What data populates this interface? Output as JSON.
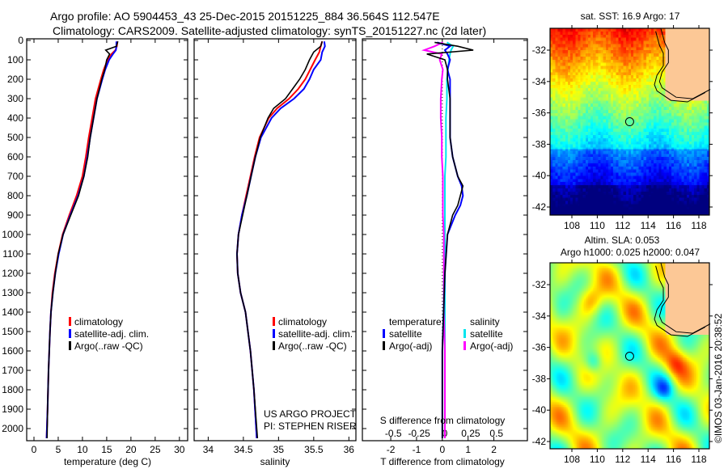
{
  "title": {
    "line1": "Argo profile: AO 5904453_43 25-Dec-2015 20151225_884 36.564S 112.547E",
    "line2": "Climatology: CARS2009. Satellite-adjusted climatology: synTS_20151227.nc (2d later)"
  },
  "colors": {
    "climatology": "#ff0000",
    "satellite": "#0000ff",
    "argo": "#000000",
    "sal_satellite": "#00e5ee",
    "sal_argo": "#ff00ff",
    "land": "#fcc896"
  },
  "credits": {
    "line1": "US ARGO PROJECT",
    "line2": "PI: STEPHEN RISER"
  },
  "copyright": "©IMOS 03-Jan-2016 20:38:52",
  "legend_profiles": [
    "climatology",
    "satellite-adj. clim.",
    "Argo(..raw -QC)"
  ],
  "legend_diff": {
    "temp_header": "temperature",
    "sal_header": "salinity",
    "temp_items": [
      "satellite",
      "Argo(-adj)"
    ],
    "sal_items": [
      "satellite",
      "Argo(-adj)"
    ]
  },
  "chart_data": [
    {
      "type": "line",
      "title": "",
      "xlabel": "temperature (deg C)",
      "ylabel": "",
      "xlim": [
        -1.5,
        31.7
      ],
      "ylim": [
        2060,
        0
      ],
      "xticks": [
        "0",
        "5",
        "10",
        "15",
        "20",
        "25",
        "30"
      ],
      "yticks": [
        "0",
        "100",
        "200",
        "300",
        "400",
        "500",
        "600",
        "700",
        "800",
        "900",
        "1000",
        "1100",
        "1200",
        "1300",
        "1400",
        "1500",
        "1600",
        "1700",
        "1800",
        "1900",
        "2000"
      ],
      "depth": [
        5,
        30,
        50,
        70,
        100,
        150,
        200,
        300,
        400,
        500,
        600,
        700,
        800,
        900,
        1000,
        1100,
        1200,
        1300,
        1400,
        1500,
        1700,
        1900,
        2050
      ],
      "series": [
        {
          "name": "climatology",
          "values": [
            17.2,
            17.1,
            16.8,
            16.0,
            15.2,
            14.4,
            13.8,
            12.7,
            12.0,
            11.3,
            10.7,
            10.0,
            8.8,
            7.3,
            5.9,
            5.0,
            4.3,
            3.8,
            3.5,
            3.3,
            3.0,
            2.8,
            2.6
          ]
        },
        {
          "name": "satellite-adj. clim.",
          "values": [
            17.0,
            17.0,
            16.9,
            16.3,
            15.5,
            14.7,
            14.1,
            13.0,
            12.3,
            11.6,
            11.0,
            10.3,
            9.1,
            7.5,
            6.0,
            5.1,
            4.4,
            3.9,
            3.5,
            3.3,
            3.0,
            2.8,
            2.6
          ]
        },
        {
          "name": "Argo(..raw -QC)",
          "values": [
            17.3,
            17.0,
            14.8,
            15.6,
            15.0,
            14.6,
            14.0,
            13.0,
            12.3,
            11.6,
            11.1,
            10.3,
            9.2,
            7.6,
            6.0,
            5.0,
            4.4,
            3.9,
            3.5,
            3.3,
            3.0,
            2.8,
            2.7
          ]
        }
      ]
    },
    {
      "type": "line",
      "xlabel": "salinity",
      "xlim": [
        33.8,
        36.1
      ],
      "ylim": [
        2060,
        0
      ],
      "xticks": [
        "34",
        "34.5",
        "35",
        "35.5",
        "36"
      ],
      "depth": [
        5,
        30,
        60,
        100,
        150,
        200,
        250,
        300,
        350,
        400,
        500,
        600,
        700,
        800,
        900,
        1000,
        1100,
        1200,
        1300,
        1400,
        1600,
        1800,
        2050
      ],
      "series": [
        {
          "name": "climatology",
          "values": [
            35.62,
            35.6,
            35.58,
            35.52,
            35.45,
            35.38,
            35.28,
            35.15,
            34.98,
            34.86,
            34.73,
            34.66,
            34.6,
            34.54,
            34.48,
            34.43,
            34.41,
            34.42,
            34.46,
            34.53,
            34.6,
            34.65,
            34.69
          ]
        },
        {
          "name": "satellite-adj. clim.",
          "values": [
            35.65,
            35.66,
            35.62,
            35.6,
            35.5,
            35.44,
            35.36,
            35.22,
            35.03,
            34.9,
            34.75,
            34.67,
            34.61,
            34.55,
            34.48,
            34.43,
            34.41,
            34.42,
            34.46,
            34.53,
            34.6,
            34.65,
            34.69
          ]
        },
        {
          "name": "Argo(..raw -QC)",
          "values": [
            35.62,
            35.6,
            35.5,
            35.44,
            35.38,
            35.3,
            35.2,
            35.1,
            34.93,
            34.85,
            34.74,
            34.67,
            34.61,
            34.55,
            34.49,
            34.43,
            34.41,
            34.42,
            34.46,
            34.53,
            34.6,
            34.65,
            34.7
          ]
        }
      ]
    },
    {
      "type": "line",
      "xlabel": "T difference from climatology",
      "x2label": "S difference from climatology",
      "xlim": [
        -3.1,
        3.3
      ],
      "x2lim": [
        -0.8,
        0.8
      ],
      "xticks": [
        "-2",
        "-1",
        "0",
        "1",
        "2"
      ],
      "x2ticks": [
        "-0.5",
        "-0.25",
        "0",
        "0.25",
        "0.5"
      ],
      "depth": [
        10,
        30,
        50,
        70,
        100,
        150,
        200,
        300,
        400,
        500,
        600,
        700,
        750,
        800,
        850,
        900,
        1000,
        1200,
        1400,
        1600,
        1800,
        2050
      ],
      "series": [
        {
          "name": "temperature satellite",
          "values": [
            -0.2,
            0.3,
            0.1,
            0.2,
            0.3,
            0.2,
            0.3,
            0.3,
            0.3,
            0.3,
            0.4,
            0.6,
            0.75,
            0.8,
            0.7,
            0.5,
            0.2,
            0.1,
            0.05,
            0.0,
            0.0,
            0.0
          ]
        },
        {
          "name": "temperature Argo(-adj)",
          "values": [
            -0.3,
            0.6,
            1.2,
            -0.6,
            0.1,
            0.2,
            0.2,
            0.3,
            0.3,
            0.3,
            0.4,
            0.6,
            0.8,
            0.7,
            0.6,
            0.4,
            0.2,
            0.1,
            0.05,
            0.0,
            0.0,
            0.0
          ]
        },
        {
          "name": "salinity satellite",
          "values": [
            0.02,
            0.08,
            0.06,
            0.05,
            0.04,
            0.03,
            0.02,
            0.02,
            0.01,
            0.01,
            0.01,
            0.0,
            0.0,
            0.0,
            0.0,
            0.0,
            0.0,
            0.0,
            0.0,
            0.0,
            0.0,
            0.0
          ]
        },
        {
          "name": "salinity Argo(-adj)",
          "values": [
            -0.02,
            -0.1,
            -0.2,
            -0.03,
            -0.05,
            -0.02,
            -0.03,
            -0.04,
            -0.04,
            -0.03,
            -0.03,
            -0.02,
            -0.02,
            -0.02,
            -0.02,
            -0.02,
            -0.01,
            -0.01,
            -0.01,
            0.0,
            0.0,
            0.0
          ]
        }
      ]
    },
    {
      "type": "heatmap",
      "title": "sat. SST: 16.9 Argo: 17",
      "xticks": [
        "108",
        "110",
        "112",
        "114",
        "116",
        "118"
      ],
      "yticks": [
        "-32",
        "-34",
        "-36",
        "-38",
        "-40",
        "-42"
      ],
      "xlim": [
        106.3,
        118.9
      ],
      "ylim": [
        -42.5,
        -30.6
      ],
      "marker": {
        "lon": 112.547,
        "lat": -36.564
      }
    },
    {
      "type": "heatmap",
      "title": "Altim. SLA: 0.053",
      "subtitle": "Argo h1000: 0.025 h2000: 0.047",
      "xticks": [
        "108",
        "110",
        "112",
        "114",
        "116",
        "118"
      ],
      "yticks": [
        "-32",
        "-34",
        "-36",
        "-38",
        "-40",
        "-42"
      ],
      "xlim": [
        106.3,
        118.9
      ],
      "ylim": [
        -42.5,
        -30.6
      ],
      "marker": {
        "lon": 112.547,
        "lat": -36.564
      }
    }
  ]
}
